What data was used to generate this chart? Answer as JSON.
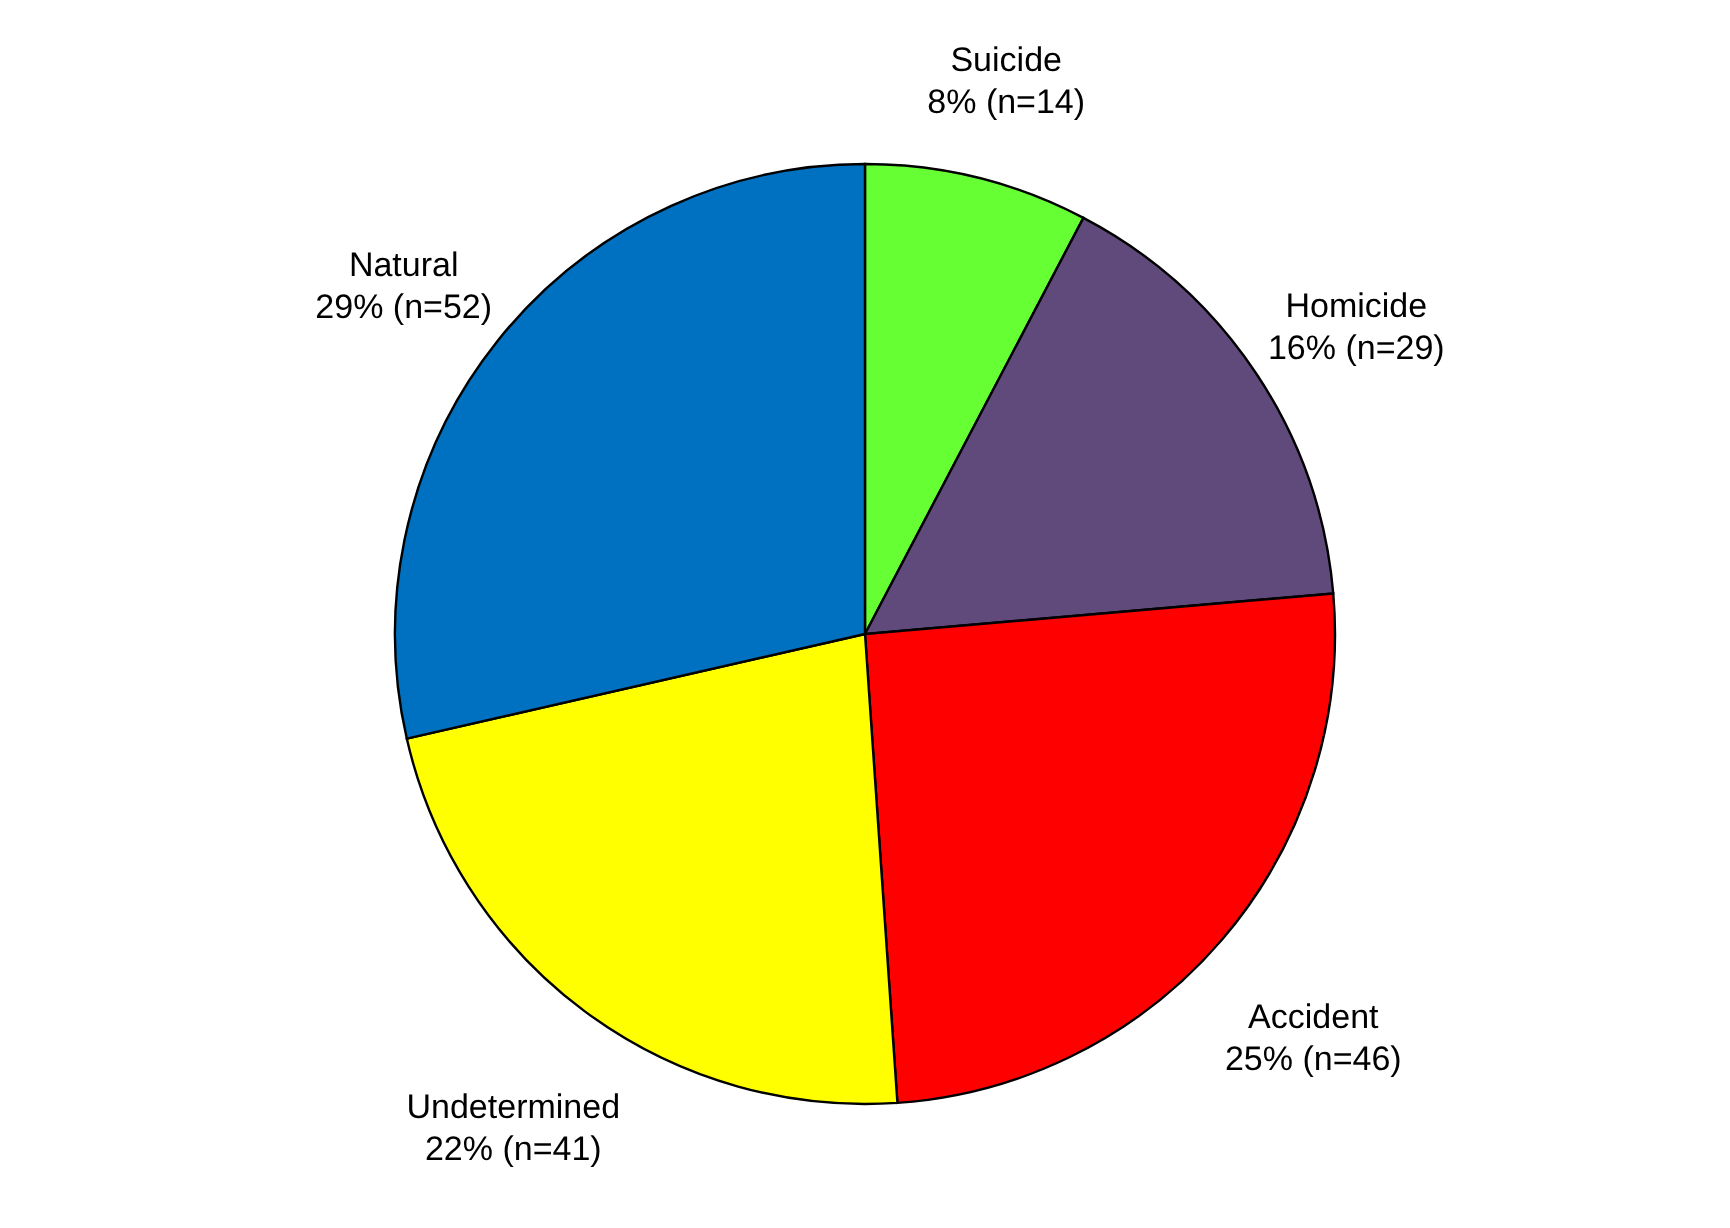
{
  "chart_data": {
    "type": "pie",
    "categories": [
      "Suicide",
      "Homicide",
      "Accident",
      "Undetermined",
      "Natural"
    ],
    "values": [
      14,
      29,
      46,
      41,
      52
    ],
    "colors": [
      "#66ff33",
      "#604a7b",
      "#ff0000",
      "#ffff00",
      "#0070c0"
    ],
    "value_labels": [
      "8% (n=14)",
      "16% (n=29)",
      "25% (n=46)",
      "22% (n=41)",
      "29% (n=52)"
    ]
  }
}
